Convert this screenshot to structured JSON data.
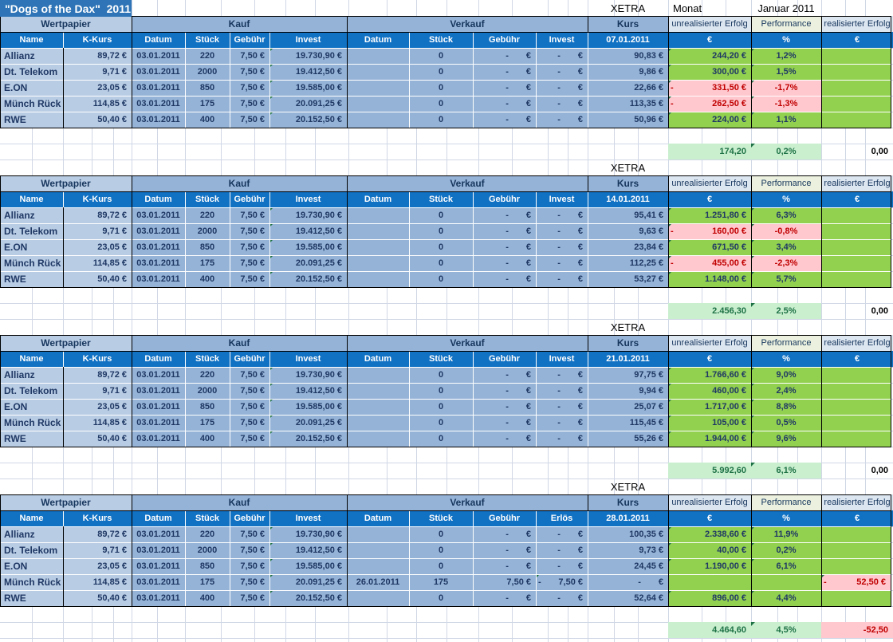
{
  "title": "\"Dogs of the Dax\"  2011",
  "top": {
    "exchange_label": "XETRA",
    "monat_label": "Monat",
    "month_value": "Januar 2011"
  },
  "groups": {
    "wertpapier": "Wertpapier",
    "kauf": "Kauf",
    "verkauf": "Verkauf",
    "kurs": "Kurs",
    "unrealisiert": "unrealisierter Erfolg",
    "performance": "Performance",
    "realisiert": "realisierter Erfolg"
  },
  "columns": {
    "name": "Name",
    "kkurs": "K-Kurs",
    "datum": "Datum",
    "stueck": "Stück",
    "gebuehr": "Gebühr",
    "invest": "Invest",
    "erloes": "Erlös",
    "euro": "€",
    "percent": "%"
  },
  "stocks": [
    {
      "name": "Allianz",
      "kkurs": "89,72 €",
      "datum": "03.01.2011",
      "stueck": "220",
      "gebuehr": "7,50 €",
      "invest": "19.730,90 €"
    },
    {
      "name": "Dt. Telekom",
      "kkurs": "9,71 €",
      "datum": "03.01.2011",
      "stueck": "2000",
      "gebuehr": "7,50 €",
      "invest": "19.412,50 €"
    },
    {
      "name": "E.ON",
      "kkurs": "23,05 €",
      "datum": "03.01.2011",
      "stueck": "850",
      "gebuehr": "7,50 €",
      "invest": "19.585,00 €"
    },
    {
      "name": "Münch Rück",
      "kkurs": "114,85 €",
      "datum": "03.01.2011",
      "stueck": "175",
      "gebuehr": "7,50 €",
      "invest": "20.091,25 €"
    },
    {
      "name": "RWE",
      "kkurs": "50,40 €",
      "datum": "03.01.2011",
      "stueck": "400",
      "gebuehr": "7,50 €",
      "invest": "20.152,50 €"
    }
  ],
  "blocks": [
    {
      "date": "07.01.2011",
      "sell_value_header": "Invest",
      "sells": [
        {
          "datum": "",
          "stueck": "0",
          "gebuehr": "zero",
          "value": "zero"
        },
        {
          "datum": "",
          "stueck": "0",
          "gebuehr": "zero",
          "value": "zero"
        },
        {
          "datum": "",
          "stueck": "0",
          "gebuehr": "zero",
          "value": "zero"
        },
        {
          "datum": "",
          "stueck": "0",
          "gebuehr": "zero",
          "value": "zero"
        },
        {
          "datum": "",
          "stueck": "0",
          "gebuehr": "zero",
          "value": "zero"
        }
      ],
      "kurse": [
        "90,83 €",
        "9,86 €",
        "22,66 €",
        "113,35 €",
        "50,96 €"
      ],
      "erfolg": [
        "244,20 €",
        "300,00 €",
        "neg:331,50 €",
        "neg:262,50 €",
        "224,00 €"
      ],
      "performance": [
        "1,2%",
        "1,5%",
        "-1,7%",
        "-1,3%",
        "1,1%"
      ],
      "realisiert": [
        null,
        null,
        null,
        null,
        null
      ],
      "summary": {
        "erfolg": "174,20",
        "performance": "0,2%",
        "realisiert": "0,00",
        "realisiert_negative": false
      }
    },
    {
      "date": "14.01.2011",
      "sell_value_header": "Invest",
      "sells": [
        {
          "datum": "",
          "stueck": "0",
          "gebuehr": "zero",
          "value": "zero"
        },
        {
          "datum": "",
          "stueck": "0",
          "gebuehr": "zero",
          "value": "zero"
        },
        {
          "datum": "",
          "stueck": "0",
          "gebuehr": "zero",
          "value": "zero"
        },
        {
          "datum": "",
          "stueck": "0",
          "gebuehr": "zero",
          "value": "zero"
        },
        {
          "datum": "",
          "stueck": "0",
          "gebuehr": "zero",
          "value": "zero"
        }
      ],
      "kurse": [
        "95,41 €",
        "9,63 €",
        "23,84 €",
        "112,25 €",
        "53,27 €"
      ],
      "erfolg": [
        "1.251,80 €",
        "neg:160,00 €",
        "671,50 €",
        "neg:455,00 €",
        "1.148,00 €"
      ],
      "performance": [
        "6,3%",
        "-0,8%",
        "3,4%",
        "-2,3%",
        "5,7%"
      ],
      "realisiert": [
        null,
        null,
        null,
        null,
        null
      ],
      "summary": {
        "erfolg": "2.456,30",
        "performance": "2,5%",
        "realisiert": "0,00",
        "realisiert_negative": false
      }
    },
    {
      "date": "21.01.2011",
      "sell_value_header": "Invest",
      "sells": [
        {
          "datum": "",
          "stueck": "0",
          "gebuehr": "zero",
          "value": "zero"
        },
        {
          "datum": "",
          "stueck": "0",
          "gebuehr": "zero",
          "value": "zero"
        },
        {
          "datum": "",
          "stueck": "0",
          "gebuehr": "zero",
          "value": "zero"
        },
        {
          "datum": "",
          "stueck": "0",
          "gebuehr": "zero",
          "value": "zero"
        },
        {
          "datum": "",
          "stueck": "0",
          "gebuehr": "zero",
          "value": "zero"
        }
      ],
      "kurse": [
        "97,75 €",
        "9,94 €",
        "25,07 €",
        "115,45 €",
        "55,26 €"
      ],
      "erfolg": [
        "1.766,60 €",
        "460,00 €",
        "1.717,00 €",
        "105,00 €",
        "1.944,00 €"
      ],
      "performance": [
        "9,0%",
        "2,4%",
        "8,8%",
        "0,5%",
        "9,6%"
      ],
      "realisiert": [
        null,
        null,
        null,
        null,
        null
      ],
      "summary": {
        "erfolg": "5.992,60",
        "performance": "6,1%",
        "realisiert": "0,00",
        "realisiert_negative": false
      }
    },
    {
      "date": "28.01.2011",
      "sell_value_header": "Erlös",
      "sells": [
        {
          "datum": "",
          "stueck": "0",
          "gebuehr": "zero",
          "value": "zero"
        },
        {
          "datum": "",
          "stueck": "0",
          "gebuehr": "zero",
          "value": "zero"
        },
        {
          "datum": "",
          "stueck": "0",
          "gebuehr": "zero",
          "value": "zero"
        },
        {
          "datum": "26.01.2011",
          "stueck": "175",
          "gebuehr": "7,50 €",
          "value": "neg:7,50 €"
        },
        {
          "datum": "",
          "stueck": "0",
          "gebuehr": "zero",
          "value": "zero"
        }
      ],
      "kurse": [
        "100,35 €",
        "9,73 €",
        "24,45 €",
        "zero",
        "52,64 €"
      ],
      "erfolg": [
        "2.338,60 €",
        "40,00 €",
        "1.190,00 €",
        null,
        "896,00 €"
      ],
      "performance": [
        "11,9%",
        "0,2%",
        "6,1%",
        null,
        "4,4%"
      ],
      "realisiert": [
        null,
        null,
        null,
        "neg:52,50 €",
        null
      ],
      "summary": {
        "erfolg": "4.464,60",
        "performance": "4,5%",
        "realisiert": "-52,50",
        "realisiert_negative": true
      }
    }
  ]
}
